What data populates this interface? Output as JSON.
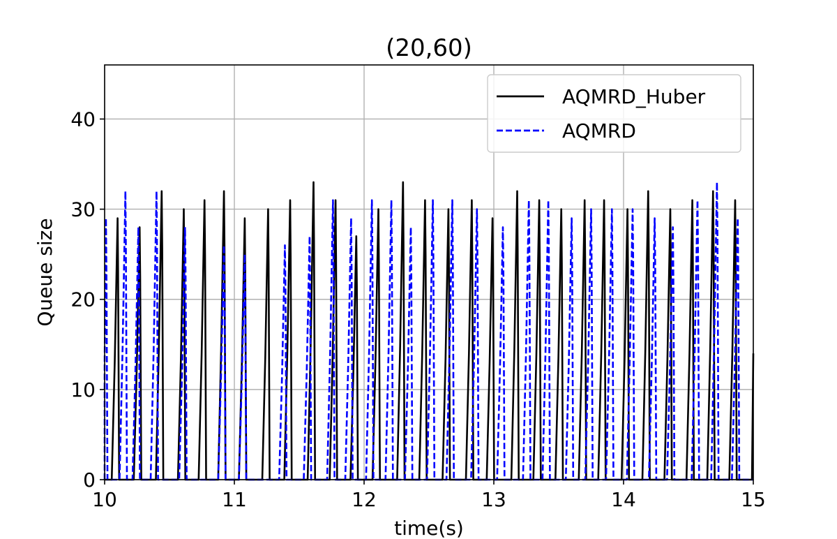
{
  "chart_data": {
    "type": "line",
    "title": "(20,60)",
    "xlabel": "time(s)",
    "ylabel": "Queue size",
    "xlim": [
      10,
      15
    ],
    "ylim": [
      0,
      46
    ],
    "x_ticks": [
      "10",
      "11",
      "12",
      "13",
      "14",
      "15"
    ],
    "y_ticks": [
      "0",
      "10",
      "20",
      "30",
      "40"
    ],
    "x_tick_values": [
      10,
      11,
      12,
      13,
      14,
      15
    ],
    "y_tick_values": [
      0,
      10,
      20,
      30,
      40
    ],
    "grid": true,
    "legend_position": "top-right",
    "series": [
      {
        "name": "AQMRD_Huber",
        "color": "#000000",
        "style": "solid",
        "peaks": [
          [
            10.1,
            29
          ],
          [
            10.27,
            28
          ],
          [
            10.44,
            32
          ],
          [
            10.61,
            30
          ],
          [
            10.77,
            31
          ],
          [
            10.92,
            32
          ],
          [
            11.08,
            29
          ],
          [
            11.26,
            30
          ],
          [
            11.43,
            31
          ],
          [
            11.61,
            33
          ],
          [
            11.78,
            31
          ],
          [
            11.94,
            27
          ],
          [
            12.11,
            30
          ],
          [
            12.3,
            33
          ],
          [
            12.47,
            31
          ],
          [
            12.65,
            30
          ],
          [
            12.83,
            31
          ],
          [
            12.99,
            29
          ],
          [
            13.18,
            32
          ],
          [
            13.35,
            31
          ],
          [
            13.52,
            30
          ],
          [
            13.7,
            31
          ],
          [
            13.85,
            31
          ],
          [
            14.03,
            30
          ],
          [
            14.19,
            32
          ],
          [
            14.36,
            30
          ],
          [
            14.53,
            31
          ],
          [
            14.69,
            32
          ],
          [
            14.86,
            31
          ]
        ]
      },
      {
        "name": "AQMRD",
        "color": "#0000ff",
        "style": "dashed",
        "peaks": [
          [
            10.01,
            29
          ],
          [
            10.16,
            32
          ],
          [
            10.26,
            28
          ],
          [
            10.4,
            32
          ],
          [
            10.62,
            28
          ],
          [
            10.92,
            26
          ],
          [
            11.08,
            25
          ],
          [
            11.39,
            26
          ],
          [
            11.58,
            27
          ],
          [
            11.76,
            31
          ],
          [
            11.9,
            29
          ],
          [
            12.06,
            31
          ],
          [
            12.21,
            31
          ],
          [
            12.36,
            28
          ],
          [
            12.53,
            31
          ],
          [
            12.68,
            31
          ],
          [
            12.87,
            30
          ],
          [
            13.07,
            28
          ],
          [
            13.27,
            31
          ],
          [
            13.42,
            31
          ],
          [
            13.6,
            29
          ],
          [
            13.75,
            30
          ],
          [
            13.91,
            30
          ],
          [
            14.07,
            30
          ],
          [
            14.24,
            29
          ],
          [
            14.38,
            28
          ],
          [
            14.57,
            31
          ],
          [
            14.72,
            33
          ],
          [
            14.88,
            29
          ]
        ]
      }
    ]
  }
}
